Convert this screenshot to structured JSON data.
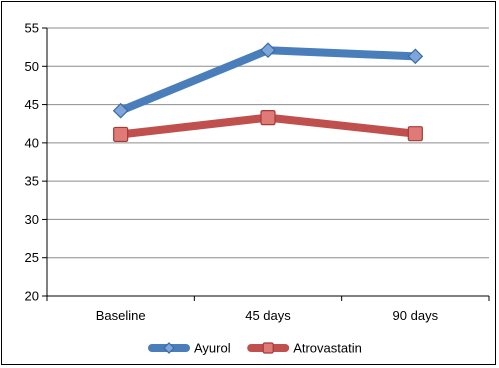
{
  "chart_data": {
    "type": "line",
    "categories": [
      "Baseline",
      "45 days",
      "90 days"
    ],
    "series": [
      {
        "name": "Ayurol",
        "values": [
          44.2,
          52.1,
          51.3
        ],
        "color": "#4a7ebb",
        "marker": "diamond"
      },
      {
        "name": "Atrovastatin",
        "values": [
          41.1,
          43.3,
          41.2
        ],
        "color": "#c0504d",
        "marker": "square"
      }
    ],
    "ylim": [
      20,
      55
    ],
    "yticks": [
      20,
      25,
      30,
      35,
      40,
      45,
      50,
      55
    ],
    "grid": true,
    "legend": "bottom",
    "title": "",
    "xlabel": "",
    "ylabel": ""
  }
}
